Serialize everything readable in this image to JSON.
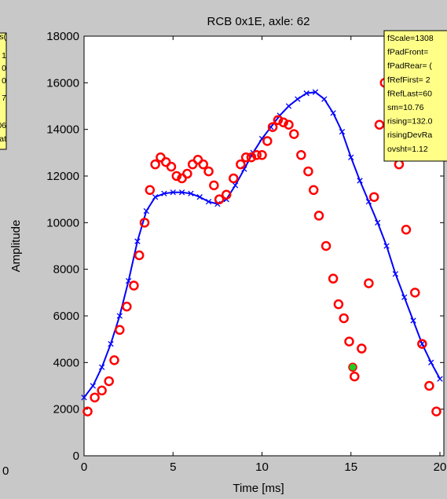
{
  "chart_data": {
    "type": "line",
    "title": "RCB 0x1E, axle: 62",
    "xlabel": "Time [ms]",
    "ylabel": "Amplitude",
    "xlim": [
      0,
      20
    ],
    "ylim": [
      0,
      18000
    ],
    "x_ticks": [
      "0",
      "5",
      "10",
      "15",
      "20"
    ],
    "y_ticks": [
      "0",
      "2000",
      "4000",
      "6000",
      "8000",
      "10000",
      "12000",
      "14000",
      "16000",
      "18000"
    ],
    "grid": false,
    "colors": {
      "line": "#0000ff",
      "circles": "#ff0000",
      "marker": "#22cc22",
      "annotation_bg": "#ffff88"
    },
    "series": [
      {
        "style": "blue-line-x-markers",
        "x": [
          0,
          0.5,
          1,
          1.5,
          2,
          2.5,
          3,
          3.5,
          4,
          4.5,
          5,
          5.5,
          6,
          6.5,
          7,
          7.5,
          8,
          8.5,
          9,
          9.5,
          10,
          10.5,
          11,
          11.5,
          12,
          12.5,
          13,
          13.5,
          14,
          14.5,
          15,
          15.5,
          16,
          16.5,
          17,
          17.5,
          18,
          18.5,
          19,
          19.5,
          20
        ],
        "values": [
          2500,
          3000,
          3800,
          4800,
          6000,
          7500,
          9200,
          10500,
          11100,
          11250,
          11300,
          11300,
          11250,
          11100,
          10900,
          10800,
          11000,
          11600,
          12300,
          13000,
          13600,
          14100,
          14600,
          15000,
          15300,
          15550,
          15600,
          15300,
          14700,
          13900,
          12800,
          11800,
          10900,
          10000,
          9000,
          7800,
          6800,
          5800,
          4800,
          4000,
          3300
        ]
      },
      {
        "style": "red-circles",
        "x": [
          0.2,
          0.6,
          1.0,
          1.4,
          1.7,
          2.0,
          2.4,
          2.8,
          3.1,
          3.4,
          3.7,
          4.0,
          4.3,
          4.6,
          4.9,
          5.2,
          5.5,
          5.8,
          6.1,
          6.4,
          6.7,
          7.0,
          7.3,
          7.6,
          8.0,
          8.4,
          8.8,
          9.1,
          9.4,
          9.7,
          10.0,
          10.3,
          10.6,
          10.9,
          11.2,
          11.5,
          11.8,
          12.2,
          12.6,
          12.9,
          13.2,
          13.6,
          14.0,
          14.3,
          14.6,
          14.9,
          15.2,
          15.6,
          16.0,
          16.3,
          16.6,
          16.9,
          17.3,
          17.7,
          18.1,
          18.6,
          19.0,
          19.4,
          19.8
        ],
        "values": [
          1900,
          2500,
          2800,
          3200,
          4100,
          5400,
          6400,
          7300,
          8600,
          10000,
          11400,
          12500,
          12800,
          12600,
          12400,
          12000,
          11900,
          12100,
          12500,
          12700,
          12500,
          12200,
          11600,
          11000,
          11200,
          11900,
          12500,
          12800,
          12800,
          12900,
          12900,
          13500,
          14100,
          14400,
          14300,
          14200,
          13800,
          12900,
          12200,
          11400,
          10300,
          9000,
          7600,
          6500,
          5900,
          4900,
          3400,
          4600,
          7400,
          11100,
          14200,
          16000,
          14000,
          12500,
          9700,
          7000,
          4800,
          3000,
          1900
        ]
      },
      {
        "style": "green-dot",
        "x": [
          15.1
        ],
        "values": [
          3800
        ]
      }
    ]
  },
  "annotation": {
    "lines": [
      "fScale=1308",
      "fPadFront=",
      "fPadRear= (",
      "fRefFirst= 2",
      "fRefLast=60",
      "sm=10.76",
      "rising=132.0",
      "risingDevRa",
      "ovsht=1.12"
    ]
  },
  "left_fragment": {
    "lines": [
      "s(",
      "1",
      "0",
      "0",
      "7",
      "06",
      "at"
    ],
    "tick_zero": "0"
  }
}
